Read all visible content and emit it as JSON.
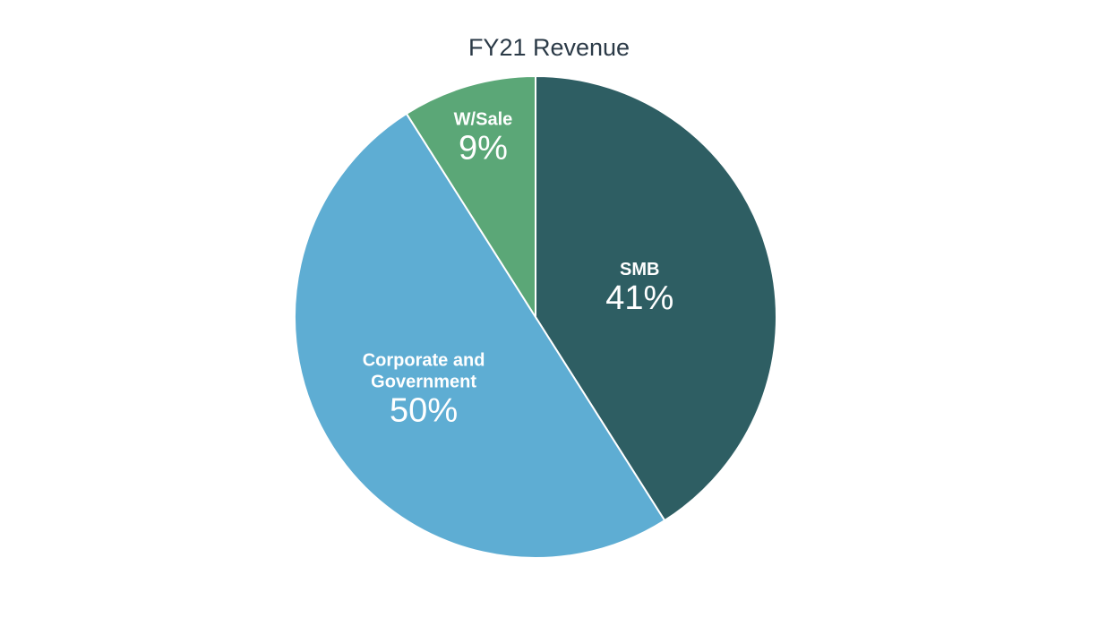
{
  "chart_data": {
    "type": "pie",
    "title": "FY21 Revenue",
    "slices": [
      {
        "name": "SMB",
        "value": 41,
        "label": "41%",
        "color": "#2e5e63"
      },
      {
        "name": "Corporate and Government",
        "name_lines": [
          "Corporate and",
          "Government"
        ],
        "value": 50,
        "label": "50%",
        "color": "#5eadd3"
      },
      {
        "name": "W/Sale",
        "value": 9,
        "label": "9%",
        "color": "#5ba777"
      }
    ]
  }
}
